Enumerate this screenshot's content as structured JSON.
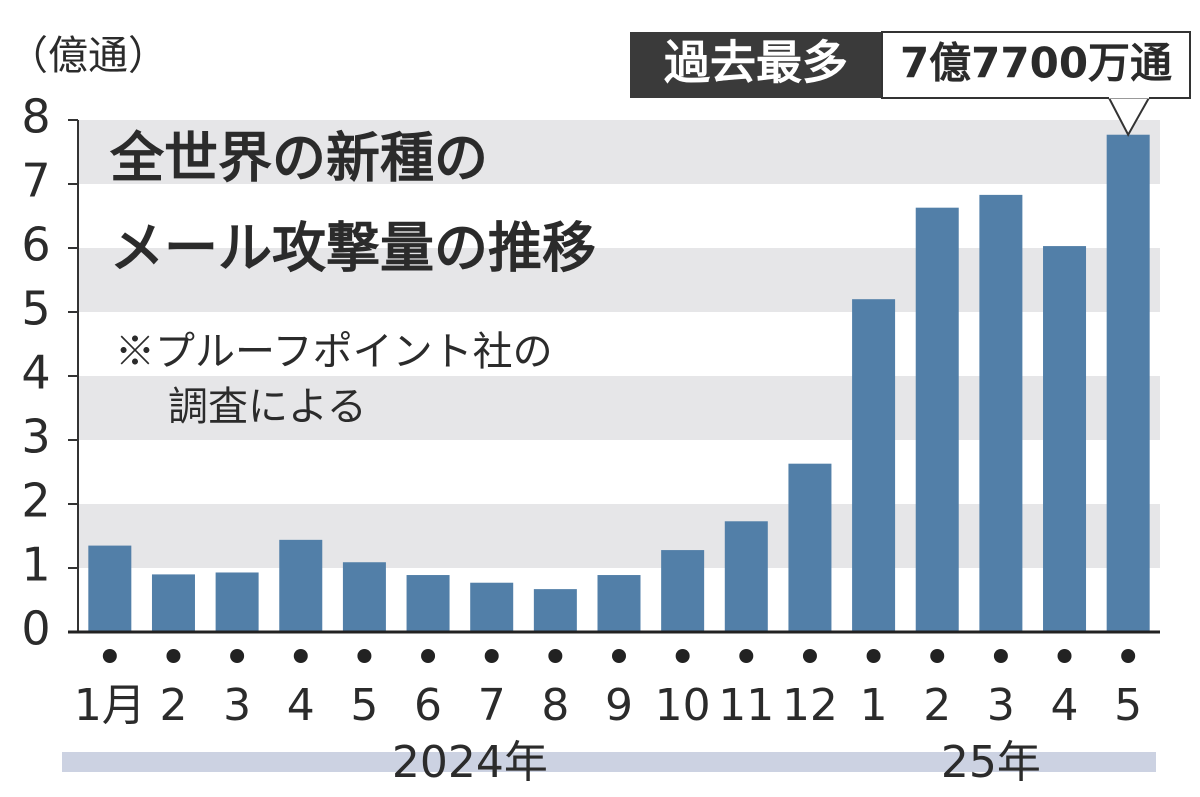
{
  "chart_data": {
    "type": "bar",
    "y_unit": "（億通）",
    "title": [
      "全世界の新種の",
      "メール攻撃量の推移"
    ],
    "note": [
      "※プルーフポイント社の",
      "調査による"
    ],
    "categories": [
      "1月",
      "2",
      "3",
      "4",
      "5",
      "6",
      "7",
      "8",
      "9",
      "10",
      "11",
      "12",
      "1",
      "2",
      "3",
      "4",
      "5"
    ],
    "category_groups": [
      {
        "label": "2024年",
        "count": 12
      },
      {
        "label": "25年",
        "count": 5
      }
    ],
    "values": [
      1.35,
      0.9,
      0.93,
      1.44,
      1.09,
      0.89,
      0.77,
      0.67,
      0.89,
      1.28,
      1.73,
      2.63,
      5.2,
      6.63,
      6.83,
      6.03,
      7.77
    ],
    "value_labels": [
      null,
      null,
      null,
      null,
      null,
      null,
      null,
      null,
      null,
      null,
      null,
      null,
      null,
      null,
      null,
      null,
      "7億7700万通"
    ],
    "annotation": "過去最多",
    "color": "#527fa8",
    "ylim": [
      0,
      8
    ],
    "yticks": [
      0,
      1,
      2,
      3,
      4,
      5,
      6,
      7,
      8
    ],
    "grid": "alternating-bands"
  }
}
